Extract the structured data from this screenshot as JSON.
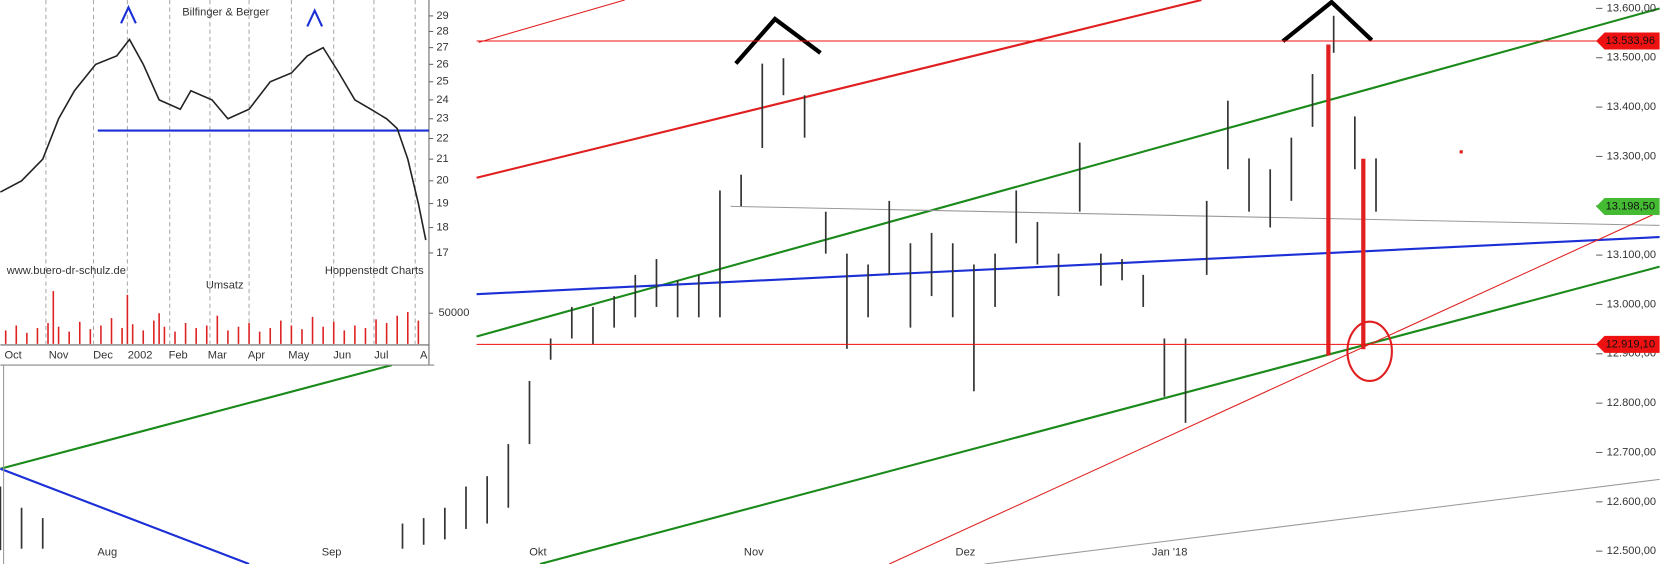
{
  "chart_data": [
    {
      "type": "range-bar",
      "xlim": [
        0,
        156.8
      ],
      "ylim": [
        12474,
        13617
      ],
      "x": [
        0,
        2,
        4,
        38,
        40,
        42,
        44,
        46,
        48,
        50,
        52,
        54,
        56,
        58,
        60,
        62,
        64,
        66,
        68,
        70,
        72,
        74,
        76,
        78,
        80,
        82,
        84,
        86,
        88,
        90,
        92,
        94,
        96,
        98,
        100,
        102,
        104,
        106,
        108,
        110,
        112,
        114,
        116,
        118,
        120,
        122,
        124,
        126,
        128,
        130
      ],
      "high": [
        12631,
        12588,
        12567,
        12556,
        12567,
        12588,
        12631,
        12652,
        12717,
        12845,
        12931,
        12995,
        12995,
        13017,
        13060,
        13092,
        13049,
        13060,
        13231,
        13263,
        13488,
        13499,
        13424,
        13188,
        13103,
        13081,
        13210,
        13124,
        13145,
        13124,
        13081,
        13103,
        13231,
        13167,
        13103,
        13328,
        13103,
        13092,
        13060,
        12931,
        12931,
        13210,
        13413,
        13296,
        13274,
        13338,
        13467,
        13585,
        13381,
        13296
      ],
      "low": [
        12502,
        12505,
        12505,
        12505,
        12513,
        12524,
        12545,
        12556,
        12588,
        12717,
        12888,
        12931,
        12920,
        12953,
        12974,
        12995,
        12974,
        12974,
        12974,
        13199,
        13317,
        13424,
        13338,
        13103,
        12910,
        12974,
        13060,
        12953,
        13017,
        12974,
        12824,
        12995,
        13124,
        13081,
        13017,
        13188,
        13038,
        13049,
        12995,
        12813,
        12760,
        13060,
        13274,
        13188,
        13156,
        13210,
        13360,
        13510,
        13274,
        13188
      ],
      "color": "#333333",
      "xticks": [
        {
          "value": 10.1,
          "label": "Aug"
        },
        {
          "value": 31.3,
          "label": "Sep"
        },
        {
          "value": 50.8,
          "label": "Okt"
        },
        {
          "value": 71.2,
          "label": "Nov"
        },
        {
          "value": 91.2,
          "label": "Dez"
        },
        {
          "value": 110.5,
          "label": "Jan '18"
        }
      ],
      "yticks": [
        {
          "value": 12500,
          "label": "12.500,00"
        },
        {
          "value": 12600,
          "label": "12.600,00"
        },
        {
          "value": 12700,
          "label": "12.700,00"
        },
        {
          "value": 12800,
          "label": "12.800,00"
        },
        {
          "value": 12900,
          "label": "12.900,00"
        },
        {
          "value": 13000,
          "label": "13.000,00"
        },
        {
          "value": 13100,
          "label": "13.100,00"
        },
        {
          "value": 13200,
          "label": "13.200,00"
        },
        {
          "value": 13300,
          "label": "13.300,00"
        },
        {
          "value": 13400,
          "label": "13.400,00"
        },
        {
          "value": 13500,
          "label": "13.500,00"
        },
        {
          "value": 13600,
          "label": "13.600,00"
        }
      ],
      "price_labels": [
        {
          "value": 13533.96,
          "label": "13.533,96",
          "color": "#ee1111",
          "rule": true
        },
        {
          "value": 13198.5,
          "label": "13.198,50",
          "color": "#44bb33",
          "rule": false
        },
        {
          "value": 12919.1,
          "label": "12.919,10",
          "color": "#ee1111",
          "rule": true
        }
      ]
    },
    {
      "type": "line",
      "title": "Bilfinger & Berger",
      "source": "www.buero-dr-schulz.de",
      "volume_label": "Umsatz",
      "credit": "Hoppenstedt Charts",
      "log_scale": true,
      "xlim": [
        0,
        405
      ],
      "ylim": [
        16.8,
        30
      ],
      "x": [
        0,
        20,
        40,
        55,
        70,
        90,
        110,
        122,
        135,
        150,
        170,
        180,
        200,
        215,
        235,
        255,
        275,
        290,
        305,
        320,
        335,
        350,
        365,
        375,
        385,
        395,
        402
      ],
      "values": [
        19.5,
        20,
        21,
        23,
        24.5,
        26,
        26.5,
        27.5,
        26,
        24,
        23.5,
        24.5,
        24,
        23,
        23.5,
        25,
        25.5,
        26.5,
        27,
        25.5,
        24,
        23.5,
        23,
        22.5,
        21,
        19,
        17.5
      ],
      "color": "#222222",
      "support": 22.4,
      "support_color": "#1a2fd6",
      "xticks": [
        {
          "value": 12,
          "label": "Oct"
        },
        {
          "value": 55,
          "label": "Nov"
        },
        {
          "value": 97,
          "label": "Dec"
        },
        {
          "value": 132,
          "label": "2002"
        },
        {
          "value": 168,
          "label": "Feb"
        },
        {
          "value": 205,
          "label": "Mar"
        },
        {
          "value": 242,
          "label": "Apr"
        },
        {
          "value": 282,
          "label": "May"
        },
        {
          "value": 323,
          "label": "Jun"
        },
        {
          "value": 360,
          "label": "Jul"
        },
        {
          "value": 400,
          "label": "A"
        }
      ],
      "yticks": [
        17,
        18,
        19,
        20,
        21,
        22,
        23,
        24,
        25,
        26,
        27,
        28,
        29
      ],
      "volume": {
        "color": "#dd2222",
        "ylim": [
          0,
          100000
        ],
        "yticks": [
          50000
        ],
        "x": [
          5,
          15,
          25,
          35,
          45,
          50,
          55,
          65,
          75,
          85,
          95,
          105,
          115,
          120,
          125,
          135,
          145,
          150,
          155,
          165,
          175,
          185,
          195,
          205,
          215,
          225,
          235,
          245,
          255,
          265,
          275,
          285,
          295,
          305,
          315,
          325,
          335,
          345,
          355,
          365,
          375,
          385,
          395
        ],
        "values": [
          22000,
          30000,
          18000,
          26000,
          34000,
          86000,
          28000,
          20000,
          36000,
          24000,
          30000,
          42000,
          26000,
          80000,
          32000,
          22000,
          38000,
          50000,
          28000,
          20000,
          34000,
          26000,
          30000,
          46000,
          22000,
          28000,
          34000,
          20000,
          26000,
          38000,
          30000,
          24000,
          44000,
          28000,
          36000,
          22000,
          30000,
          26000,
          40000,
          34000,
          46000,
          52000,
          38000
        ]
      }
    }
  ]
}
